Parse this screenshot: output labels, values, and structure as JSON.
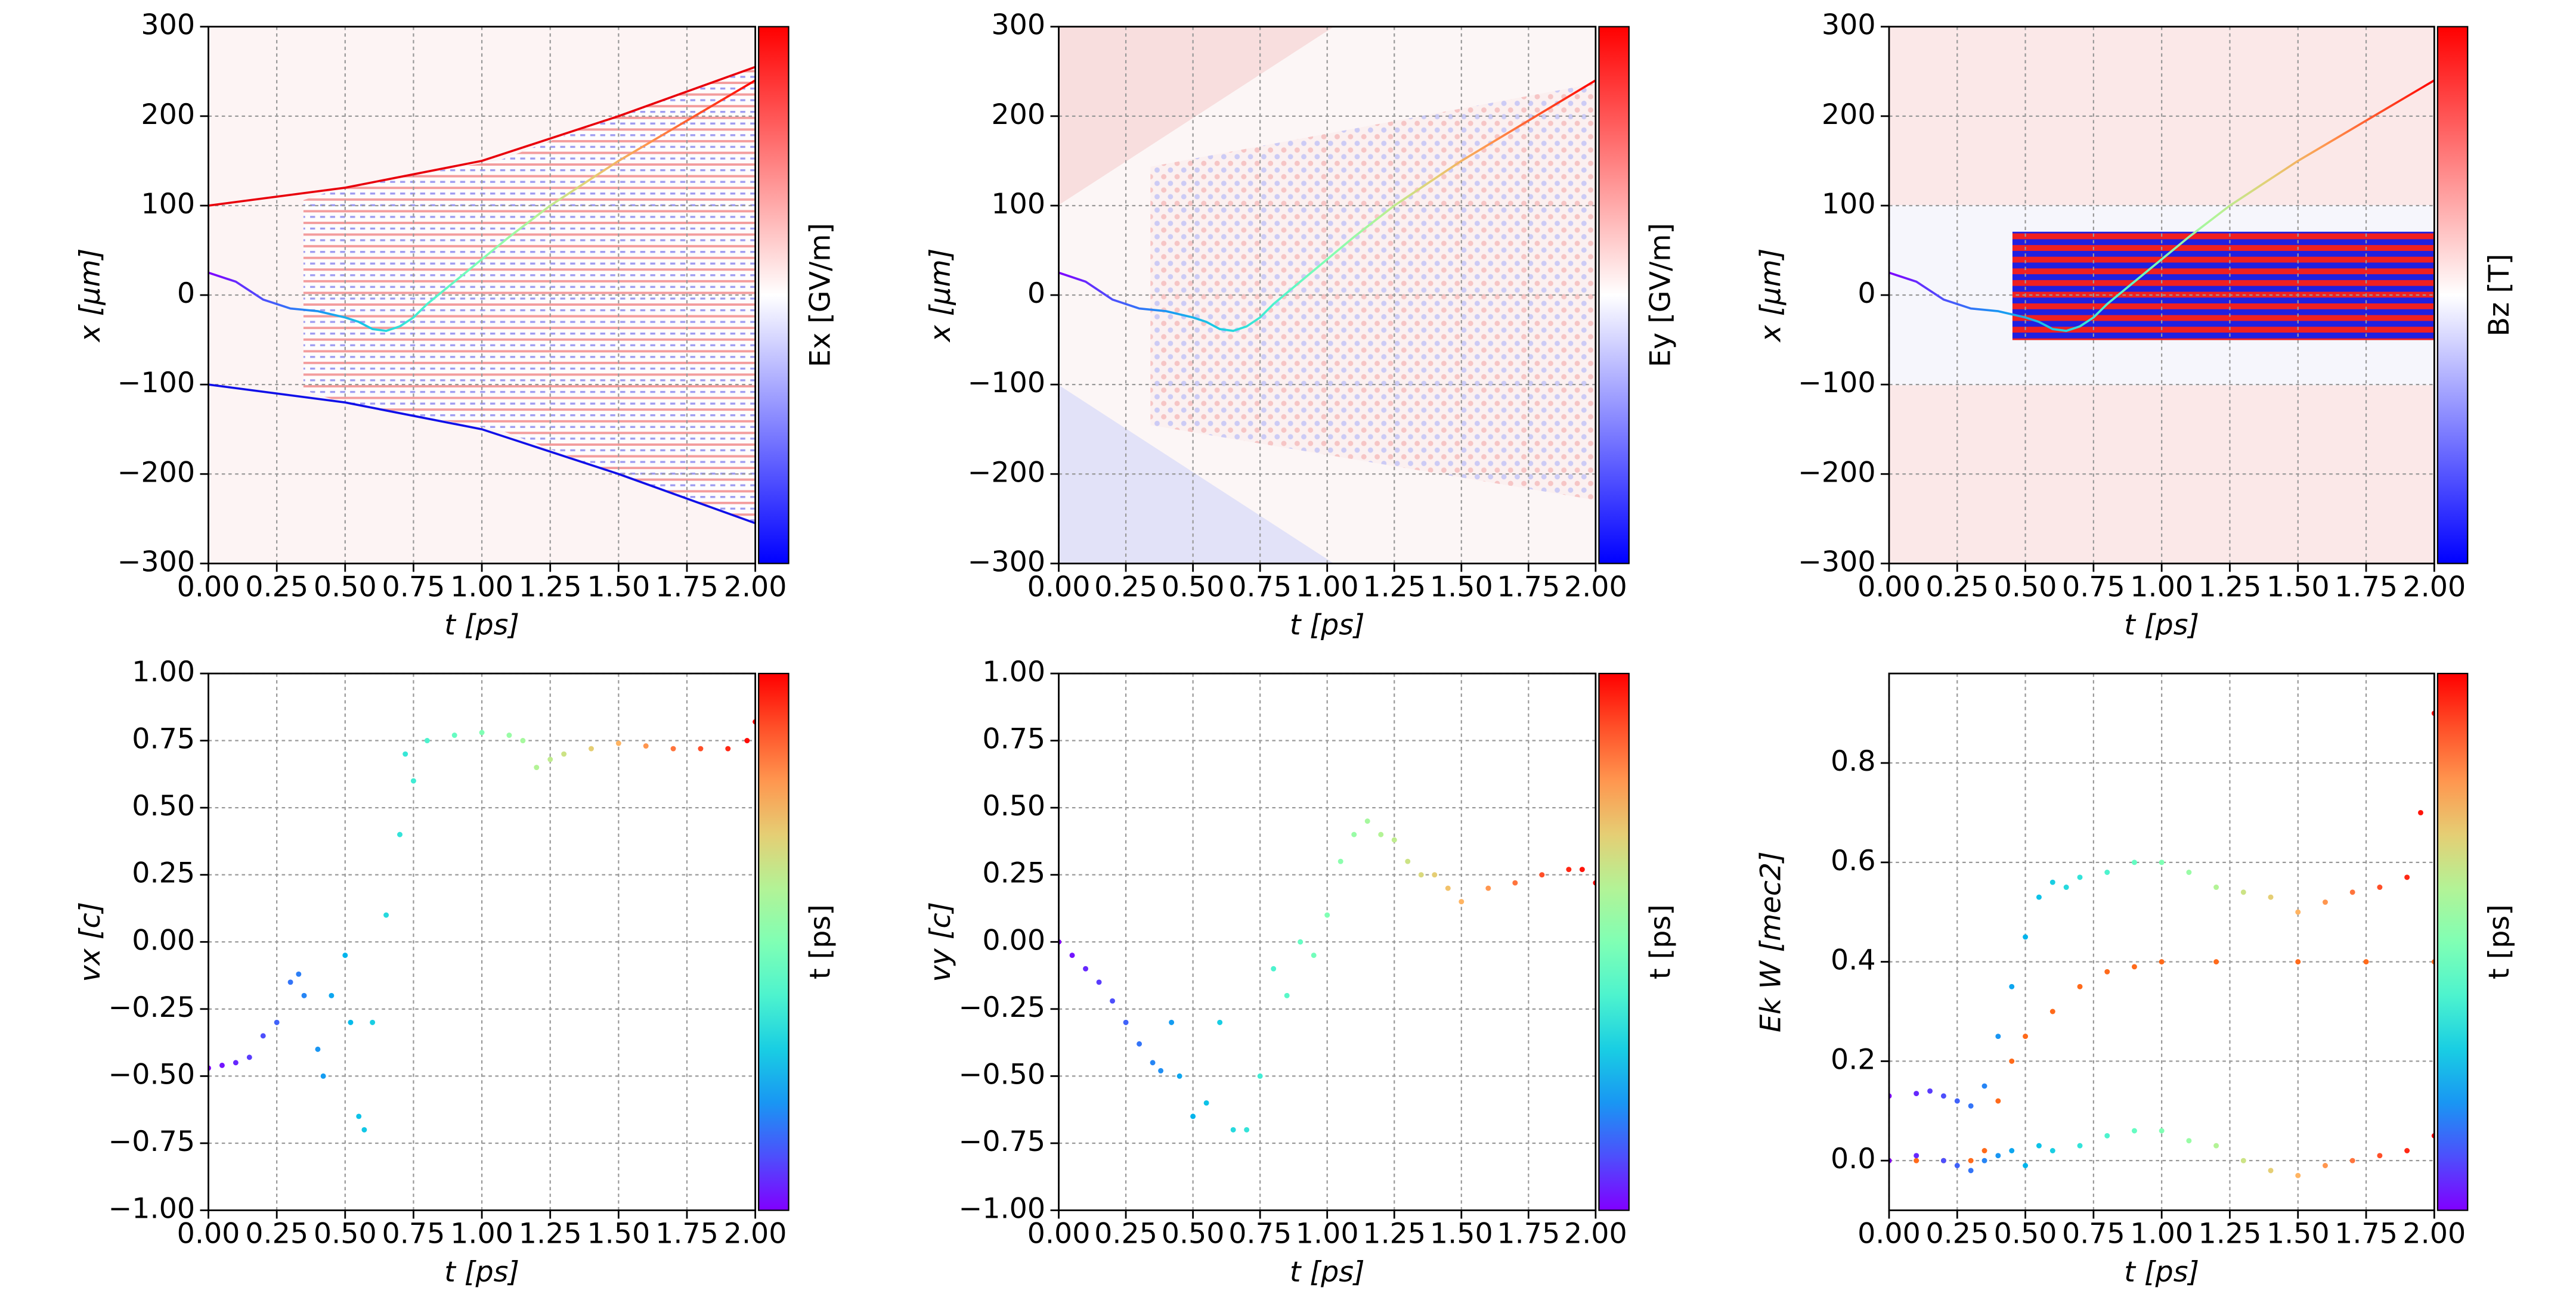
{
  "chart_data": [
    {
      "type": "heatmap",
      "xlabel": "t  [ps]",
      "ylabel": "x  [μm]",
      "colorbar_label": "Ex  [GV/m]",
      "colormap": "bwr",
      "grid": true,
      "xlim": [
        0,
        2
      ],
      "ylim": [
        -300,
        300
      ],
      "xticks": [
        {
          "value": 0,
          "label": "0.00"
        },
        {
          "value": 0.25,
          "label": "0.25"
        },
        {
          "value": 0.5,
          "label": "0.50"
        },
        {
          "value": 0.75,
          "label": "0.75"
        },
        {
          "value": 1,
          "label": "1.00"
        },
        {
          "value": 1.25,
          "label": "1.25"
        },
        {
          "value": 1.5,
          "label": "1.50"
        },
        {
          "value": 1.75,
          "label": "1.75"
        },
        {
          "value": 2,
          "label": "2.00"
        }
      ],
      "yticks": [
        {
          "value": -300,
          "label": "−300"
        },
        {
          "value": -200,
          "label": "−200"
        },
        {
          "value": -100,
          "label": "−100"
        },
        0,
        100,
        200,
        300
      ],
      "series": [
        {
          "color": "rainbow",
          "x": [
            0,
            0.1,
            0.2,
            0.3,
            0.4,
            0.5,
            0.55,
            0.6,
            0.65,
            0.7,
            0.75,
            0.8,
            0.9,
            1.0,
            1.1,
            1.25,
            1.5,
            1.75,
            2.0
          ],
          "values": [
            25,
            15,
            -5,
            -15,
            -18,
            -25,
            -30,
            -38,
            -40,
            -35,
            -25,
            -10,
            15,
            40,
            65,
            100,
            150,
            195,
            240
          ]
        },
        {
          "color": "#e8000b",
          "x": [
            0,
            0.5,
            1.0,
            1.5,
            2.0
          ],
          "values": [
            100,
            120,
            150,
            200,
            255
          ]
        },
        {
          "color": "#1010e8",
          "x": [
            0,
            0.5,
            1.0,
            1.5,
            2.0
          ],
          "values": [
            -100,
            -120,
            -150,
            -200,
            -255
          ]
        }
      ]
    },
    {
      "type": "heatmap",
      "xlabel": "t  [ps]",
      "ylabel": "x  [μm]",
      "colorbar_label": "Ey  [GV/m]",
      "colormap": "bwr",
      "grid": true,
      "xlim": [
        0,
        2
      ],
      "ylim": [
        -300,
        300
      ],
      "xticks": [
        {
          "value": 0,
          "label": "0.00"
        },
        {
          "value": 0.25,
          "label": "0.25"
        },
        {
          "value": 0.5,
          "label": "0.50"
        },
        {
          "value": 0.75,
          "label": "0.75"
        },
        {
          "value": 1,
          "label": "1.00"
        },
        {
          "value": 1.25,
          "label": "1.25"
        },
        {
          "value": 1.5,
          "label": "1.50"
        },
        {
          "value": 1.75,
          "label": "1.75"
        },
        {
          "value": 2,
          "label": "2.00"
        }
      ],
      "yticks": [
        {
          "value": -300,
          "label": "−300"
        },
        {
          "value": -200,
          "label": "−200"
        },
        {
          "value": -100,
          "label": "−100"
        },
        0,
        100,
        200,
        300
      ],
      "series": [
        {
          "color": "rainbow",
          "x": [
            0,
            0.1,
            0.2,
            0.3,
            0.4,
            0.5,
            0.55,
            0.6,
            0.65,
            0.7,
            0.75,
            0.8,
            0.9,
            1.0,
            1.1,
            1.25,
            1.5,
            1.75,
            2.0
          ],
          "values": [
            25,
            15,
            -5,
            -15,
            -18,
            -25,
            -30,
            -38,
            -40,
            -35,
            -25,
            -10,
            15,
            40,
            65,
            100,
            150,
            195,
            240
          ]
        }
      ]
    },
    {
      "type": "heatmap",
      "xlabel": "t  [ps]",
      "ylabel": "x  [μm]",
      "colorbar_label": "Bz  [T]",
      "colormap": "bwr",
      "grid": true,
      "xlim": [
        0,
        2
      ],
      "ylim": [
        -300,
        300
      ],
      "xticks": [
        {
          "value": 0,
          "label": "0.00"
        },
        {
          "value": 0.25,
          "label": "0.25"
        },
        {
          "value": 0.5,
          "label": "0.50"
        },
        {
          "value": 0.75,
          "label": "0.75"
        },
        {
          "value": 1,
          "label": "1.00"
        },
        {
          "value": 1.25,
          "label": "1.25"
        },
        {
          "value": 1.5,
          "label": "1.50"
        },
        {
          "value": 1.75,
          "label": "1.75"
        },
        {
          "value": 2,
          "label": "2.00"
        }
      ],
      "yticks": [
        {
          "value": -300,
          "label": "−300"
        },
        {
          "value": -200,
          "label": "−200"
        },
        {
          "value": -100,
          "label": "−100"
        },
        0,
        100,
        200,
        300
      ],
      "series": [
        {
          "color": "rainbow",
          "x": [
            0,
            0.1,
            0.2,
            0.3,
            0.4,
            0.5,
            0.55,
            0.6,
            0.65,
            0.7,
            0.75,
            0.8,
            0.9,
            1.0,
            1.1,
            1.25,
            1.5,
            1.75,
            2.0
          ],
          "values": [
            25,
            15,
            -5,
            -15,
            -18,
            -25,
            -30,
            -38,
            -40,
            -35,
            -25,
            -10,
            15,
            40,
            65,
            100,
            150,
            195,
            240
          ]
        }
      ]
    },
    {
      "type": "scatter",
      "xlabel": "t  [ps]",
      "ylabel": "vx [c]",
      "colorbar_label": "t  [ps]",
      "colormap": "rainbow",
      "grid": true,
      "xlim": [
        0,
        2
      ],
      "ylim": [
        -1,
        1
      ],
      "xticks": [
        {
          "value": 0,
          "label": "0.00"
        },
        {
          "value": 0.25,
          "label": "0.25"
        },
        {
          "value": 0.5,
          "label": "0.50"
        },
        {
          "value": 0.75,
          "label": "0.75"
        },
        {
          "value": 1,
          "label": "1.00"
        },
        {
          "value": 1.25,
          "label": "1.25"
        },
        {
          "value": 1.5,
          "label": "1.50"
        },
        {
          "value": 1.75,
          "label": "1.75"
        },
        {
          "value": 2,
          "label": "2.00"
        }
      ],
      "yticks": [
        {
          "value": -1,
          "label": "−1.00"
        },
        {
          "value": -0.75,
          "label": "−0.75"
        },
        {
          "value": -0.5,
          "label": "−0.50"
        },
        {
          "value": -0.25,
          "label": "−0.25"
        },
        {
          "value": 0,
          "label": "0.00"
        },
        0.25,
        {
          "value": 0.5,
          "label": "0.50"
        },
        0.75,
        {
          "value": 1,
          "label": "1.00"
        }
      ],
      "series": [
        {
          "color": "rainbow",
          "x": [
            0,
            0.05,
            0.1,
            0.15,
            0.2,
            0.25,
            0.3,
            0.33,
            0.35,
            0.4,
            0.42,
            0.45,
            0.5,
            0.52,
            0.55,
            0.57,
            0.6,
            0.65,
            0.7,
            0.72,
            0.75,
            0.8,
            0.9,
            1.0,
            1.1,
            1.15,
            1.2,
            1.25,
            1.3,
            1.4,
            1.5,
            1.6,
            1.7,
            1.8,
            1.9,
            1.97,
            2.0
          ],
          "values": [
            -0.47,
            -0.46,
            -0.45,
            -0.43,
            -0.35,
            -0.3,
            -0.15,
            -0.12,
            -0.2,
            -0.4,
            -0.5,
            -0.2,
            -0.05,
            -0.3,
            -0.65,
            -0.7,
            -0.3,
            0.1,
            0.4,
            0.7,
            0.6,
            0.75,
            0.77,
            0.78,
            0.77,
            0.75,
            0.65,
            0.68,
            0.7,
            0.72,
            0.74,
            0.73,
            0.72,
            0.72,
            0.72,
            0.75,
            0.82
          ]
        }
      ]
    },
    {
      "type": "scatter",
      "xlabel": "t  [ps]",
      "ylabel": "vy [c]",
      "colorbar_label": "t  [ps]",
      "colormap": "rainbow",
      "grid": true,
      "xlim": [
        0,
        2
      ],
      "ylim": [
        -1,
        1
      ],
      "xticks": [
        {
          "value": 0,
          "label": "0.00"
        },
        {
          "value": 0.25,
          "label": "0.25"
        },
        {
          "value": 0.5,
          "label": "0.50"
        },
        {
          "value": 0.75,
          "label": "0.75"
        },
        {
          "value": 1,
          "label": "1.00"
        },
        {
          "value": 1.25,
          "label": "1.25"
        },
        {
          "value": 1.5,
          "label": "1.50"
        },
        {
          "value": 1.75,
          "label": "1.75"
        },
        {
          "value": 2,
          "label": "2.00"
        }
      ],
      "yticks": [
        {
          "value": -1,
          "label": "−1.00"
        },
        {
          "value": -0.75,
          "label": "−0.75"
        },
        {
          "value": -0.5,
          "label": "−0.50"
        },
        {
          "value": -0.25,
          "label": "−0.25"
        },
        {
          "value": 0,
          "label": "0.00"
        },
        0.25,
        {
          "value": 0.5,
          "label": "0.50"
        },
        0.75,
        {
          "value": 1,
          "label": "1.00"
        }
      ],
      "series": [
        {
          "color": "rainbow",
          "x": [
            0,
            0.05,
            0.1,
            0.15,
            0.2,
            0.25,
            0.3,
            0.35,
            0.38,
            0.42,
            0.45,
            0.5,
            0.55,
            0.6,
            0.65,
            0.7,
            0.75,
            0.8,
            0.85,
            0.9,
            0.95,
            1.0,
            1.05,
            1.1,
            1.15,
            1.2,
            1.25,
            1.3,
            1.35,
            1.4,
            1.45,
            1.5,
            1.6,
            1.7,
            1.8,
            1.9,
            1.95,
            2.0
          ],
          "values": [
            0,
            -0.05,
            -0.1,
            -0.15,
            -0.22,
            -0.3,
            -0.38,
            -0.45,
            -0.48,
            -0.3,
            -0.5,
            -0.65,
            -0.6,
            -0.3,
            -0.7,
            -0.7,
            -0.5,
            -0.1,
            -0.2,
            0,
            -0.05,
            0.1,
            0.3,
            0.4,
            0.45,
            0.4,
            0.38,
            0.3,
            0.25,
            0.25,
            0.2,
            0.15,
            0.2,
            0.22,
            0.25,
            0.27,
            0.27,
            0.22
          ]
        }
      ]
    },
    {
      "type": "scatter",
      "xlabel": "t  [ps]",
      "ylabel": "Ek W [mec2]",
      "colorbar_label": "t  [ps]",
      "colormap": "rainbow",
      "grid": true,
      "xlim": [
        0,
        2
      ],
      "ylim": [
        -0.1,
        0.98
      ],
      "xticks": [
        {
          "value": 0,
          "label": "0.00"
        },
        {
          "value": 0.25,
          "label": "0.25"
        },
        {
          "value": 0.5,
          "label": "0.50"
        },
        {
          "value": 0.75,
          "label": "0.75"
        },
        {
          "value": 1,
          "label": "1.00"
        },
        {
          "value": 1.25,
          "label": "1.25"
        },
        {
          "value": 1.5,
          "label": "1.50"
        },
        {
          "value": 1.75,
          "label": "1.75"
        },
        {
          "value": 2,
          "label": "2.00"
        }
      ],
      "yticks": [
        {
          "value": 0,
          "label": "0.0"
        },
        0.2,
        0.4,
        0.6,
        0.8
      ],
      "series": [
        {
          "color": "rainbow",
          "x": [
            0,
            0.1,
            0.15,
            0.2,
            0.25,
            0.3,
            0.35,
            0.4,
            0.45,
            0.5,
            0.55,
            0.6,
            0.65,
            0.7,
            0.8,
            0.9,
            1.0,
            1.1,
            1.2,
            1.3,
            1.4,
            1.5,
            1.6,
            1.7,
            1.8,
            1.9,
            1.95,
            2.0
          ],
          "values": [
            0.13,
            0.135,
            0.14,
            0.13,
            0.12,
            0.11,
            0.15,
            0.25,
            0.35,
            0.45,
            0.53,
            0.56,
            0.55,
            0.57,
            0.58,
            0.6,
            0.6,
            0.58,
            0.55,
            0.54,
            0.53,
            0.5,
            0.52,
            0.54,
            0.55,
            0.57,
            0.7,
            0.9
          ]
        },
        {
          "color": "#ff6a1a",
          "x": [
            0,
            0.1,
            0.2,
            0.3,
            0.35,
            0.4,
            0.45,
            0.5,
            0.6,
            0.7,
            0.8,
            0.9,
            1.0,
            1.2,
            1.5,
            1.75,
            2.0
          ],
          "values": [
            0,
            0,
            0,
            0,
            0.02,
            0.12,
            0.2,
            0.25,
            0.3,
            0.35,
            0.38,
            0.39,
            0.4,
            0.4,
            0.4,
            0.4,
            0.4
          ]
        },
        {
          "color": "rainbow",
          "x": [
            0,
            0.1,
            0.2,
            0.25,
            0.3,
            0.35,
            0.4,
            0.45,
            0.5,
            0.55,
            0.6,
            0.7,
            0.8,
            0.9,
            1.0,
            1.1,
            1.2,
            1.3,
            1.4,
            1.5,
            1.6,
            1.7,
            1.8,
            1.9,
            2.0
          ],
          "values": [
            0,
            0.01,
            0,
            -0.01,
            -0.02,
            0,
            0.01,
            0.02,
            -0.01,
            0.03,
            0.02,
            0.03,
            0.05,
            0.06,
            0.06,
            0.04,
            0.03,
            0,
            -0.02,
            -0.03,
            -0.01,
            0,
            0.01,
            0.02,
            0.05
          ]
        }
      ]
    }
  ]
}
